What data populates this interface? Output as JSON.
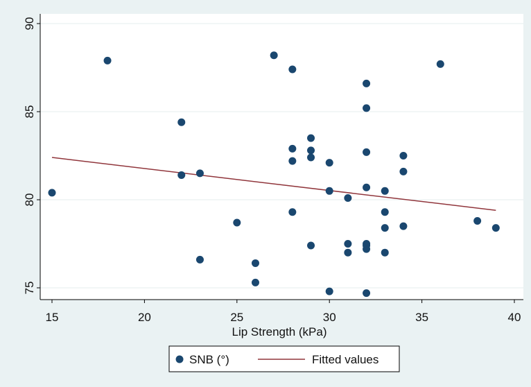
{
  "chart_data": {
    "type": "scatter",
    "xlabel": "Lip Strength (kPa)",
    "ylabel": "",
    "xlim": [
      15,
      40
    ],
    "ylim": [
      75,
      90
    ],
    "xticks": [
      "15",
      "20",
      "25",
      "30",
      "35",
      "40"
    ],
    "yticks": [
      "75",
      "80",
      "85",
      "90"
    ],
    "grid": true,
    "legend_position": "bottom",
    "series": [
      {
        "name": "SNB (°)",
        "kind": "scatter",
        "color": "#1a476f",
        "points": [
          [
            15,
            80.4
          ],
          [
            18,
            87.9
          ],
          [
            22,
            84.4
          ],
          [
            22,
            81.4
          ],
          [
            23,
            81.5
          ],
          [
            23,
            76.6
          ],
          [
            25,
            78.7
          ],
          [
            26,
            76.4
          ],
          [
            26,
            75.3
          ],
          [
            27,
            88.2
          ],
          [
            28,
            87.4
          ],
          [
            28,
            82.9
          ],
          [
            28,
            82.2
          ],
          [
            28,
            79.3
          ],
          [
            29,
            83.5
          ],
          [
            29,
            82.8
          ],
          [
            29,
            82.4
          ],
          [
            29,
            77.4
          ],
          [
            30,
            82.1
          ],
          [
            30,
            80.5
          ],
          [
            30,
            74.8
          ],
          [
            31,
            80.1
          ],
          [
            31,
            77.5
          ],
          [
            31,
            77.0
          ],
          [
            32,
            86.6
          ],
          [
            32,
            85.2
          ],
          [
            32,
            82.7
          ],
          [
            32,
            80.7
          ],
          [
            32,
            77.5
          ],
          [
            32,
            77.4
          ],
          [
            32,
            77.2
          ],
          [
            32,
            74.7
          ],
          [
            33,
            80.5
          ],
          [
            33,
            79.3
          ],
          [
            33,
            78.4
          ],
          [
            33,
            77.0
          ],
          [
            34,
            82.5
          ],
          [
            34,
            81.6
          ],
          [
            34,
            78.5
          ],
          [
            36,
            87.7
          ],
          [
            38,
            78.8
          ],
          [
            39,
            78.4
          ]
        ]
      },
      {
        "name": "Fitted values",
        "kind": "line",
        "color": "#90353b",
        "points": [
          [
            15,
            82.4
          ],
          [
            39,
            79.4
          ]
        ]
      }
    ]
  }
}
